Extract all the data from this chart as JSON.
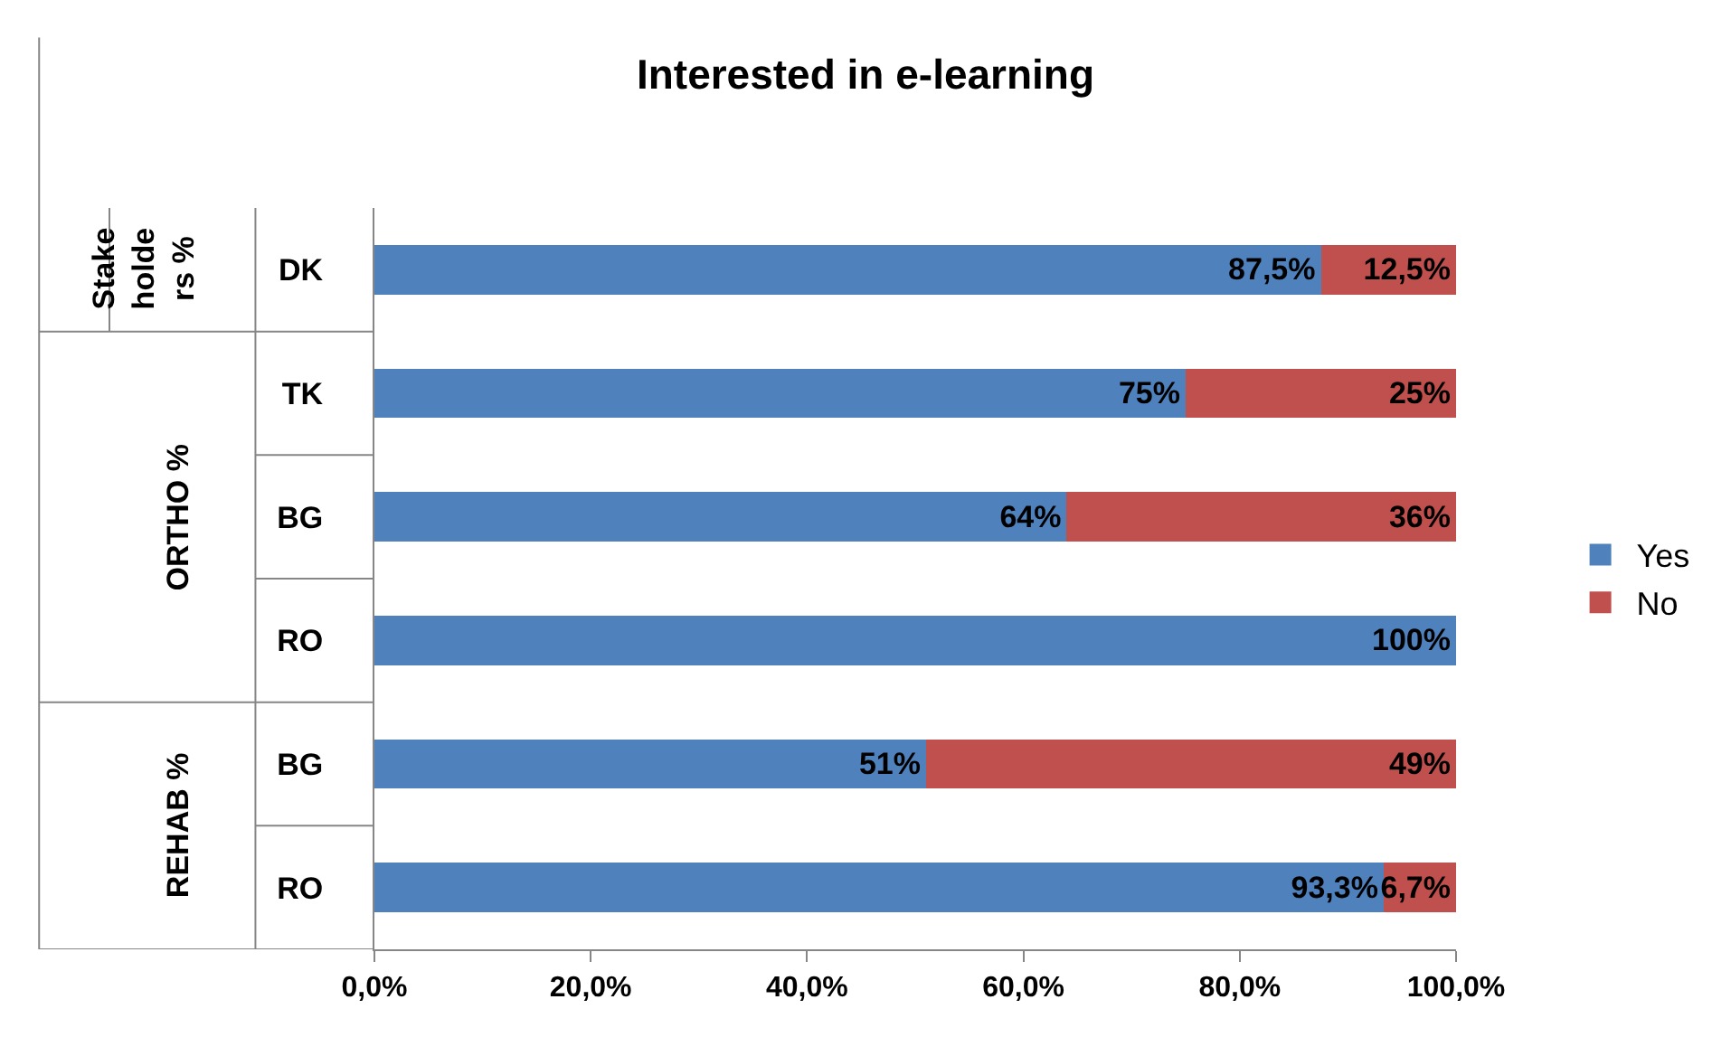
{
  "chart_data": {
    "type": "bar",
    "orientation": "horizontal",
    "stacked": true,
    "title": "Interested in e-learning",
    "categories": [
      "DK",
      "TK",
      "BG",
      "RO",
      "BG",
      "RO"
    ],
    "series": [
      {
        "name": "Yes",
        "color": "#4f81bd",
        "values": [
          87.5,
          75,
          64,
          100,
          51,
          93.3
        ],
        "value_labels": [
          "87,5%",
          "75%",
          "64%",
          "100%",
          "51%",
          "93,3%"
        ]
      },
      {
        "name": "No",
        "color": "#c0504d",
        "values": [
          12.5,
          25,
          36,
          0,
          49,
          6.7
        ],
        "value_labels": [
          "12,5%",
          "25%",
          "36%",
          null,
          "49%",
          "6,7%"
        ]
      }
    ],
    "annotations": [
      "Stake\nholde\nrs %",
      "ORTHO %",
      "REHAB %"
    ],
    "xlim": [
      0,
      100
    ],
    "xticks": [
      {
        "value": 0,
        "label": "0,0%"
      },
      {
        "value": 20,
        "label": "20,0%"
      },
      {
        "value": 40,
        "label": "40,0%"
      },
      {
        "value": 60,
        "label": "60,0%"
      },
      {
        "value": 80,
        "label": "80,0%"
      },
      {
        "value": 100,
        "label": "100,0%"
      }
    ],
    "grid": false,
    "legend": "right"
  }
}
